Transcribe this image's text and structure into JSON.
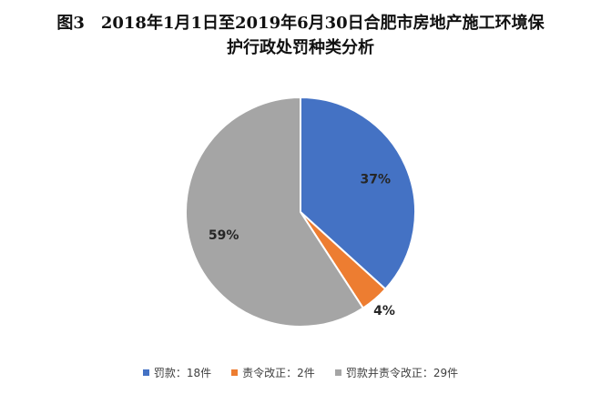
{
  "chart_data": {
    "type": "pie",
    "title_line1": "图3　2018年1月1日至2019年6月30日合肥市房地产施工环境保",
    "title_line2": "护行政处罚种类分析",
    "slices": [
      {
        "name": "罚款",
        "value": 18,
        "unit": "件",
        "percent_label": "37%",
        "legend_label": "罚款：18件",
        "color": "#4472C4"
      },
      {
        "name": "责令改正",
        "value": 2,
        "unit": "件",
        "percent_label": "4%",
        "legend_label": "责令改正：2件",
        "color": "#ED7D31"
      },
      {
        "name": "罚款并责令改正",
        "value": 29,
        "unit": "件",
        "percent_label": "59%",
        "legend_label": "罚款并责令改正：29件",
        "color": "#A5A5A5"
      }
    ],
    "legend_position": "bottom",
    "start_angle": "12 o'clock",
    "direction": "clockwise"
  }
}
